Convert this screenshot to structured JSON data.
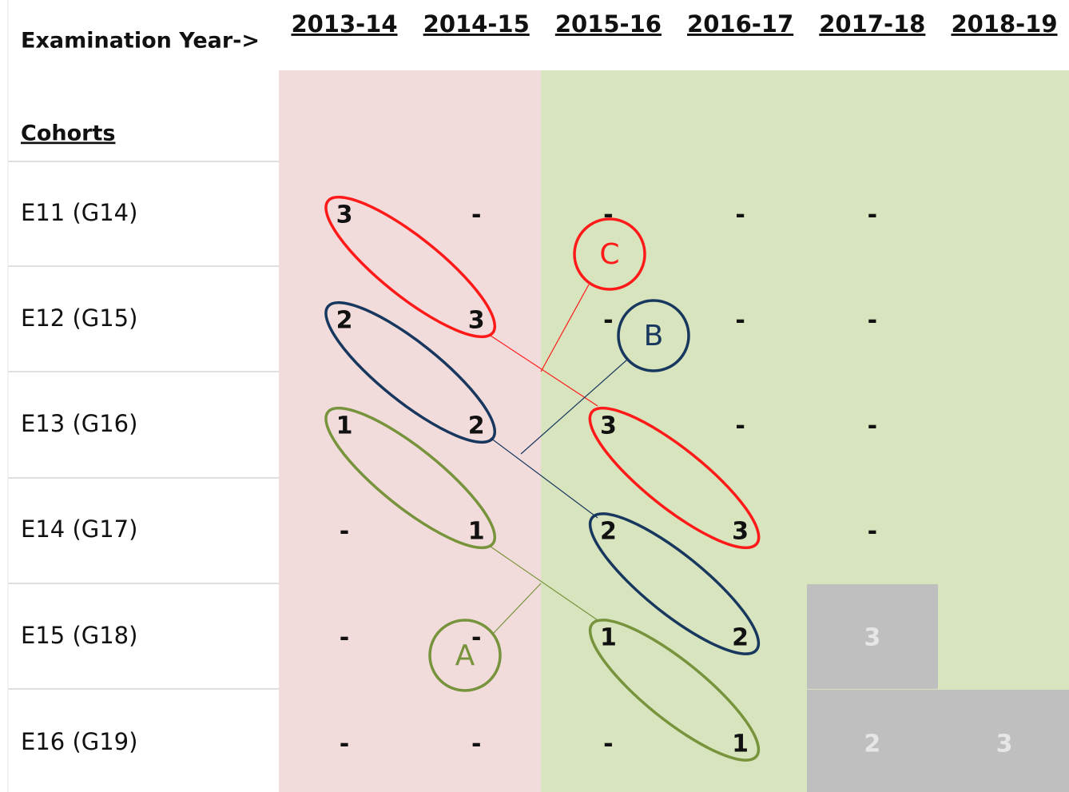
{
  "header": {
    "axis_label": "Examination Year->",
    "row_header": "Cohorts"
  },
  "years": [
    "2013-14",
    "2014-15",
    "2015-16",
    "2016-17",
    "2017-18",
    "2018-19"
  ],
  "rows": [
    {
      "label": "E11 (G14)",
      "cells": [
        "3",
        "-",
        "-",
        "-",
        "-",
        null
      ]
    },
    {
      "label": "E12 (G15)",
      "cells": [
        "2",
        "3",
        "-",
        "-",
        "-",
        null
      ]
    },
    {
      "label": "E13 (G16)",
      "cells": [
        "1",
        "2",
        "3",
        "-",
        "-",
        null
      ]
    },
    {
      "label": "E14 (G17)",
      "cells": [
        "-",
        "1",
        "2",
        "3",
        "-",
        null
      ]
    },
    {
      "label": "E15 (G18)",
      "cells": [
        "-",
        "-",
        "1",
        "2",
        "3",
        null
      ]
    },
    {
      "label": "E16 (G19)",
      "cells": [
        "-",
        "-",
        "-",
        "1",
        "2",
        "3"
      ]
    }
  ],
  "groups": [
    "A",
    "B",
    "C"
  ]
}
